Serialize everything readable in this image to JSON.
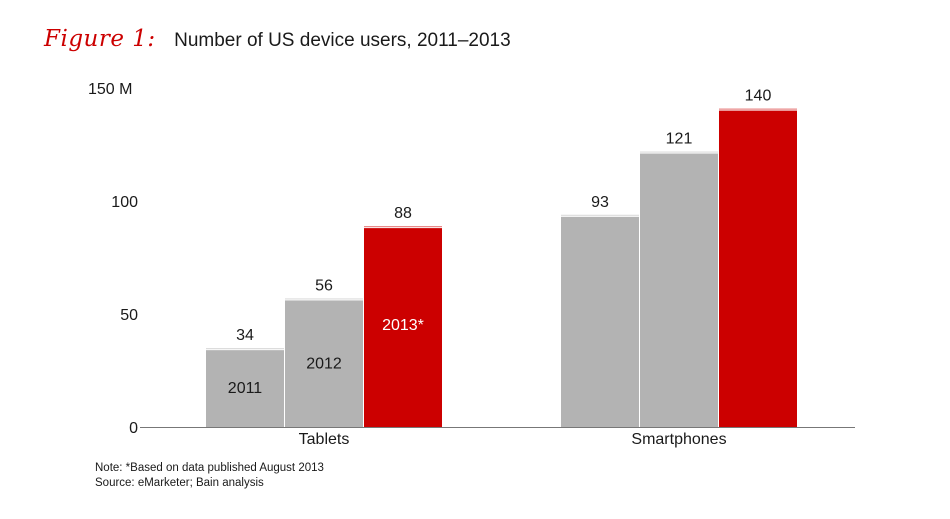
{
  "figure_label": "Figure 1:",
  "title": "Number of US device users, 2011–2013",
  "chart_data": {
    "type": "bar",
    "title": "Number of US device users, 2011–2013",
    "categories": [
      "Tablets",
      "Smartphones"
    ],
    "series": [
      {
        "name": "2011",
        "values": [
          34,
          93
        ]
      },
      {
        "name": "2012",
        "values": [
          56,
          121
        ]
      },
      {
        "name": "2013*",
        "values": [
          88,
          140
        ]
      }
    ],
    "in_bar_labels": {
      "category": "Tablets",
      "labels": [
        "2011",
        "2012",
        "2013*"
      ]
    },
    "y_ticks": [
      "0",
      "50",
      "100",
      "150 M"
    ],
    "y_tick_values": [
      0,
      50,
      100,
      150
    ],
    "ylim": [
      0,
      150
    ],
    "ylabel": "",
    "xlabel": "",
    "grid": false,
    "legend": "none",
    "colors": {
      "2011": "#b3b3b3",
      "2012": "#b3b3b3",
      "2013*": "#cc0000"
    }
  },
  "notes": {
    "note": "Note: *Based on data published August 2013",
    "source": "Source: eMarketer; Bain analysis"
  }
}
